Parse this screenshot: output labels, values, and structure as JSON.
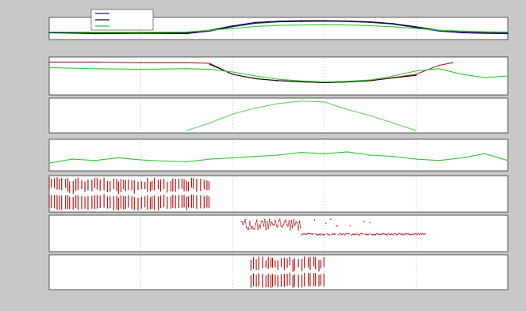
{
  "figure": {
    "title": "",
    "xlabel": "",
    "colors": {
      "background": "#c8c8c8",
      "panel": "#ffffff",
      "blue": "#1a1a9a",
      "black": "#111111",
      "red": "#b01818",
      "green": "#2fc82f",
      "lightgreen": "#66cc66"
    }
  },
  "chart_data": [
    {
      "type": "line",
      "title": "",
      "ylabel": "",
      "legend": {
        "position": "top-left",
        "entries": [
          {
            "name": "",
            "color": "#1a1a9a"
          },
          {
            "name": "",
            "color": "#111111"
          },
          {
            "name": "",
            "color": "#2fc82f"
          }
        ]
      },
      "series": [
        {
          "color": "#1a1a9a",
          "x": [
            0,
            0.1,
            0.2,
            0.3,
            0.35,
            0.4,
            0.45,
            0.5,
            0.55,
            0.6,
            0.65,
            0.7,
            0.75,
            0.8,
            0.85,
            0.9,
            0.95,
            1.0
          ],
          "values": [
            0.25,
            0.2,
            0.22,
            0.2,
            0.35,
            0.6,
            0.8,
            0.88,
            0.9,
            0.92,
            0.9,
            0.85,
            0.75,
            0.55,
            0.35,
            0.25,
            0.22,
            0.2
          ]
        },
        {
          "color": "#111111",
          "x": [
            0,
            0.1,
            0.2,
            0.3,
            0.35,
            0.4,
            0.45,
            0.5,
            0.55,
            0.6,
            0.65,
            0.7,
            0.75,
            0.8,
            0.85,
            0.9,
            0.95,
            1.0
          ],
          "values": [
            0.28,
            0.24,
            0.25,
            0.24,
            0.4,
            0.65,
            0.85,
            0.92,
            0.95,
            0.95,
            0.93,
            0.88,
            0.78,
            0.6,
            0.4,
            0.3,
            0.26,
            0.24
          ]
        },
        {
          "color": "#2fc82f",
          "x": [
            0,
            0.1,
            0.2,
            0.3,
            0.35,
            0.4,
            0.45,
            0.5,
            0.55,
            0.6,
            0.65,
            0.7,
            0.75,
            0.8,
            0.85,
            0.9,
            0.95,
            1.0
          ],
          "values": [
            0.3,
            0.28,
            0.28,
            0.3,
            0.4,
            0.5,
            0.62,
            0.68,
            0.7,
            0.72,
            0.7,
            0.66,
            0.6,
            0.5,
            0.4,
            0.35,
            0.32,
            0.3
          ]
        }
      ]
    },
    {
      "type": "line",
      "title": "",
      "ylabel": "",
      "series": [
        {
          "color": "#b01818",
          "x": [
            0,
            0.1,
            0.2,
            0.3,
            0.35,
            0.4,
            0.45,
            0.5,
            0.55,
            0.6,
            0.65,
            0.7,
            0.75,
            0.8,
            0.85,
            0.88
          ],
          "values": [
            0.92,
            0.92,
            0.9,
            0.9,
            0.88,
            0.55,
            0.42,
            0.36,
            0.32,
            0.3,
            0.32,
            0.36,
            0.45,
            0.55,
            0.82,
            0.9
          ]
        },
        {
          "color": "#111111",
          "x": [
            0.35,
            0.4,
            0.45,
            0.5,
            0.55,
            0.6,
            0.65,
            0.7,
            0.75,
            0.8
          ],
          "values": [
            0.85,
            0.55,
            0.42,
            0.36,
            0.33,
            0.3,
            0.32,
            0.36,
            0.44,
            0.52
          ]
        },
        {
          "color": "#2fc82f",
          "x": [
            0,
            0.1,
            0.2,
            0.3,
            0.35,
            0.4,
            0.45,
            0.5,
            0.55,
            0.6,
            0.65,
            0.7,
            0.75,
            0.8,
            0.85,
            0.9,
            0.95,
            1.0
          ],
          "values": [
            0.75,
            0.72,
            0.7,
            0.72,
            0.7,
            0.62,
            0.5,
            0.4,
            0.35,
            0.32,
            0.34,
            0.38,
            0.5,
            0.65,
            0.72,
            0.55,
            0.45,
            0.5
          ]
        }
      ]
    },
    {
      "type": "line",
      "title": "",
      "ylabel": "",
      "series": [
        {
          "color": "#66cc66",
          "x": [
            0.3,
            0.35,
            0.4,
            0.45,
            0.5,
            0.55,
            0.6,
            0.62,
            0.65,
            0.7,
            0.75,
            0.8
          ],
          "values": [
            0.0,
            0.25,
            0.55,
            0.75,
            0.9,
            0.98,
            0.95,
            0.85,
            0.7,
            0.5,
            0.25,
            0.0
          ]
        }
      ]
    },
    {
      "type": "line",
      "title": "",
      "ylabel": "",
      "series": [
        {
          "color": "#2fc82f",
          "x": [
            0,
            0.05,
            0.1,
            0.15,
            0.2,
            0.25,
            0.3,
            0.35,
            0.4,
            0.45,
            0.5,
            0.55,
            0.6,
            0.65,
            0.7,
            0.75,
            0.8,
            0.85,
            0.9,
            0.95,
            1.0
          ],
          "values": [
            0.2,
            0.35,
            0.3,
            0.4,
            0.32,
            0.28,
            0.25,
            0.35,
            0.4,
            0.45,
            0.5,
            0.6,
            0.55,
            0.62,
            0.5,
            0.45,
            0.35,
            0.3,
            0.4,
            0.55,
            0.3
          ]
        }
      ]
    },
    {
      "type": "bar",
      "title": "",
      "ylabel": "",
      "range": [
        0.0,
        0.35
      ],
      "color": "#b01818"
    },
    {
      "type": "scatter",
      "title": "",
      "ylabel": "",
      "range": [
        0.42,
        0.82
      ],
      "color": "#b01818"
    },
    {
      "type": "bar",
      "title": "",
      "ylabel": "",
      "range": [
        0.44,
        0.6
      ],
      "color": "#b01818"
    }
  ]
}
